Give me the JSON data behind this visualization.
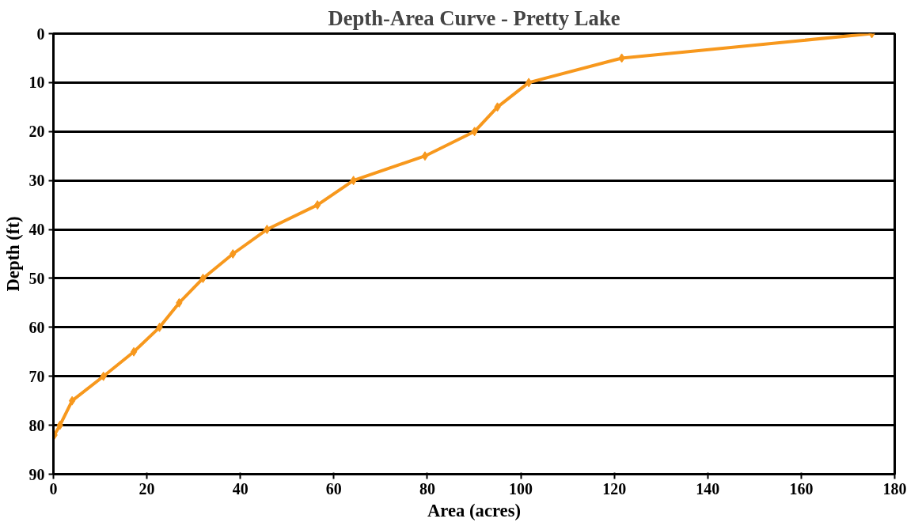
{
  "chart_data": {
    "type": "line",
    "title": "Depth-Area Curve - Pretty Lake",
    "xlabel": "Area (acres)",
    "ylabel": "Depth (ft)",
    "series": [
      {
        "color": "#f7981d",
        "x": [
          175.1,
          121.6,
          101.7,
          95.0,
          90.1,
          79.5,
          64.2,
          56.5,
          45.7,
          38.4,
          32.0,
          26.9,
          22.7,
          17.2,
          10.7,
          4.0,
          1.4,
          0.2
        ],
        "values": [
          0,
          5,
          10,
          15,
          20,
          25,
          30,
          35,
          40,
          45,
          50,
          55,
          60,
          65,
          70,
          75,
          80,
          82
        ]
      }
    ],
    "xlim": [
      0,
      180
    ],
    "xticks": [
      0,
      20,
      40,
      60,
      80,
      100,
      120,
      140,
      160,
      180
    ],
    "ylim": [
      90,
      0
    ],
    "yticks": [
      0,
      10,
      20,
      30,
      40,
      50,
      60,
      70,
      80,
      90
    ],
    "grid": "y",
    "marker": "diamond",
    "line_style": "solid"
  }
}
